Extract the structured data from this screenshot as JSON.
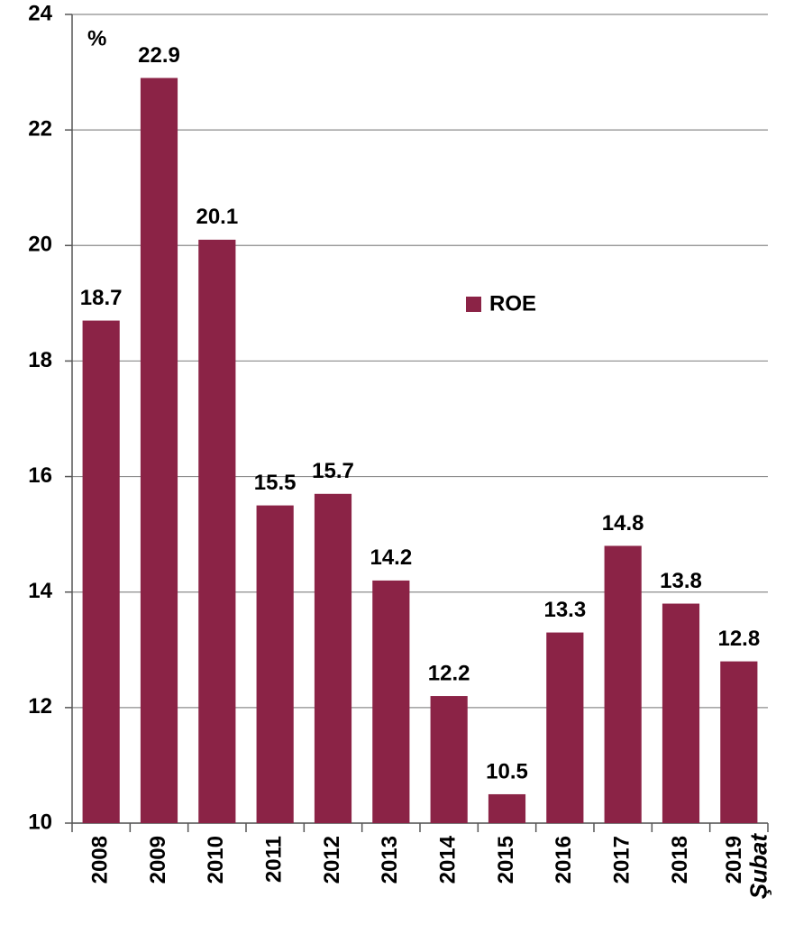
{
  "chart_data": {
    "type": "bar",
    "y_label": "%",
    "categories": [
      "2008",
      "2009",
      "2010",
      "2011",
      "2012",
      "2013",
      "2014",
      "2015",
      "2016",
      "2017",
      "2018",
      "2019"
    ],
    "category_note": "Şubat",
    "series": [
      {
        "name": "ROE",
        "color": "#8b2346",
        "values": [
          18.7,
          22.9,
          20.1,
          15.5,
          15.7,
          14.2,
          12.2,
          10.5,
          13.3,
          14.8,
          13.8,
          12.8
        ]
      }
    ],
    "ylim": [
      10,
      24
    ],
    "yticks": [
      10,
      12,
      14,
      16,
      18,
      20,
      22,
      24
    ],
    "grid": true,
    "legend": "center"
  }
}
